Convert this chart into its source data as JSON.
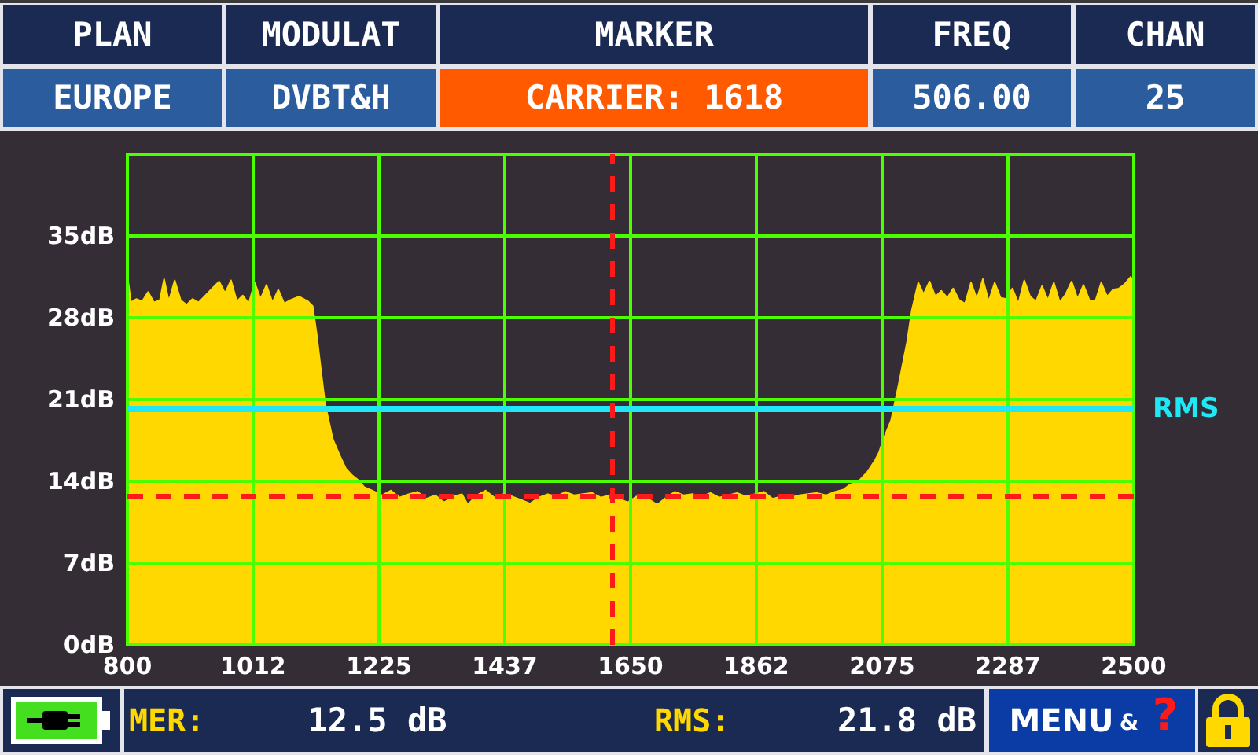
{
  "chart_data": {
    "type": "area",
    "color": "#ffd800",
    "x": [
      800,
      806,
      815,
      825,
      835,
      845,
      855,
      862,
      870,
      880,
      890,
      900,
      910,
      920,
      930,
      945,
      955,
      965,
      975,
      985,
      995,
      1005,
      1015,
      1025,
      1035,
      1045,
      1055,
      1065,
      1075,
      1090,
      1105,
      1113,
      1120,
      1127,
      1134,
      1147,
      1158,
      1169,
      1180,
      1190,
      1200,
      1214,
      1230,
      1245,
      1260,
      1275,
      1290,
      1305,
      1320,
      1335,
      1350,
      1365,
      1375,
      1390,
      1405,
      1420,
      1435,
      1450,
      1465,
      1480,
      1495,
      1510,
      1525,
      1540,
      1555,
      1570,
      1585,
      1600,
      1615,
      1630,
      1645,
      1660,
      1680,
      1695,
      1710,
      1725,
      1740,
      1755,
      1770,
      1785,
      1800,
      1815,
      1830,
      1845,
      1860,
      1875,
      1890,
      1905,
      1920,
      1935,
      1950,
      1965,
      1980,
      1995,
      2010,
      2020,
      2035,
      2050,
      2063,
      2070,
      2077,
      2090,
      2103,
      2117,
      2125,
      2136,
      2145,
      2155,
      2165,
      2175,
      2185,
      2195,
      2205,
      2215,
      2225,
      2235,
      2245,
      2255,
      2265,
      2275,
      2285,
      2295,
      2305,
      2315,
      2325,
      2335,
      2345,
      2355,
      2365,
      2375,
      2385,
      2395,
      2405,
      2415,
      2425,
      2435,
      2445,
      2455,
      2465,
      2475,
      2485,
      2495,
      2500
    ],
    "values": [
      31.6,
      29.3,
      29.6,
      29.4,
      30.2,
      29.3,
      29.5,
      31.3,
      29.4,
      31.2,
      29.5,
      29.1,
      29.6,
      29.3,
      29.8,
      30.6,
      31.1,
      30.1,
      31.2,
      29.4,
      29.9,
      29.2,
      31.0,
      29.6,
      30.8,
      29.3,
      30.4,
      29.2,
      29.5,
      29.8,
      29.4,
      29.0,
      26.5,
      23.5,
      20.6,
      17.6,
      16.3,
      15.1,
      14.5,
      14.1,
      13.5,
      13.2,
      12.8,
      13.2,
      12.6,
      12.9,
      13.1,
      12.5,
      12.8,
      12.2,
      12.7,
      12.9,
      12.0,
      12.8,
      13.2,
      12.6,
      12.9,
      12.7,
      12.4,
      12.1,
      12.6,
      12.9,
      12.7,
      13.1,
      12.8,
      12.9,
      13.0,
      12.6,
      12.8,
      12.5,
      12.2,
      12.7,
      12.5,
      12.0,
      12.6,
      13.1,
      12.8,
      12.9,
      12.7,
      13.0,
      12.6,
      12.8,
      13.0,
      12.7,
      12.9,
      13.1,
      12.5,
      12.7,
      12.6,
      12.8,
      12.9,
      13.0,
      12.8,
      13.1,
      13.3,
      13.7,
      14.0,
      14.8,
      15.8,
      16.5,
      17.6,
      19.2,
      22.3,
      25.9,
      28.6,
      31.0,
      30.0,
      31.1,
      29.8,
      30.3,
      29.7,
      30.5,
      29.5,
      29.2,
      31.0,
      29.6,
      31.3,
      29.4,
      31.0,
      29.7,
      29.6,
      30.5,
      29.2,
      31.2,
      29.8,
      29.4,
      30.7,
      29.5,
      31.0,
      29.3,
      30.0,
      31.1,
      29.6,
      30.8,
      29.5,
      29.4,
      31.0,
      29.8,
      30.4,
      30.5,
      30.9,
      31.5,
      30.8
    ],
    "xlim": [
      800,
      2500
    ],
    "xticks": [
      800,
      {
        "value": 1012.5,
        "label": "1012"
      },
      1225,
      {
        "value": 1437.5,
        "label": "1437"
      },
      1650,
      {
        "value": 1862.5,
        "label": "1862"
      },
      2075,
      {
        "value": 2287.5,
        "label": "2287"
      },
      2500
    ],
    "ylim": [
      0,
      42
    ],
    "yticks": [
      {
        "value": 0,
        "label": "0dB"
      },
      {
        "value": 7,
        "label": "7dB"
      },
      {
        "value": 14,
        "label": "14dB"
      },
      {
        "value": 21,
        "label": "21dB"
      },
      {
        "value": 28,
        "label": "28dB"
      },
      {
        "value": 35,
        "label": "35dB"
      },
      {
        "value": 42,
        "label": null
      }
    ],
    "grid": true,
    "ref_lines": [
      {
        "axis": "y",
        "value": 20.2,
        "label": "RMS",
        "color": "#1ee8f5"
      },
      {
        "axis": "y",
        "value": 12.8,
        "label": null,
        "color": "#ff1a1a",
        "line_style": "dashed"
      },
      {
        "axis": "x",
        "value": 1618,
        "label": null,
        "color": "#ff1a1a",
        "line_style": "dashed"
      }
    ],
    "annotations": [
      "PLAN",
      "MODULAT",
      "MARKER",
      "FREQ",
      "CHAN",
      "EUROPE",
      "DVBT&H",
      "CARRIER: 1618",
      "506.00",
      "25",
      "MER:",
      "12.5 dB",
      "RMS:",
      "21.8 dB",
      "MENU",
      "&",
      "?"
    ]
  }
}
